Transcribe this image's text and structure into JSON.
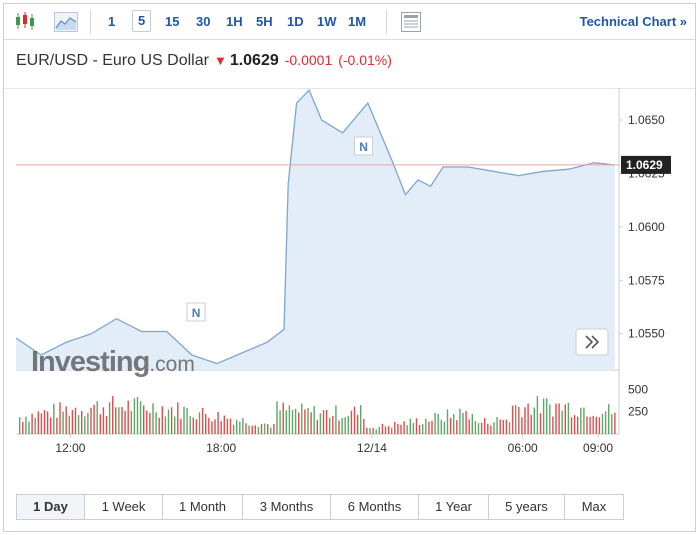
{
  "toolbar": {
    "intervals": [
      {
        "label": "1",
        "active": false
      },
      {
        "label": "5",
        "active": true
      },
      {
        "label": "15",
        "active": false
      },
      {
        "label": "30",
        "active": false
      },
      {
        "label": "1H",
        "active": false
      },
      {
        "label": "5H",
        "active": false
      },
      {
        "label": "1D",
        "active": false
      },
      {
        "label": "1W",
        "active": false
      },
      {
        "label": "1M",
        "active": false
      }
    ],
    "technical_chart_label": "Technical Chart »"
  },
  "quote": {
    "name": "EUR/USD - Euro US Dollar",
    "direction_icon": "down-arrow-icon",
    "price": "1.0629",
    "change": "-0.0001",
    "change_pct": "(-0.01%)"
  },
  "watermark": {
    "brand": "Investing",
    "suffix": ".com"
  },
  "colors": {
    "accent": "#1f57a8",
    "line": "#7da6d0",
    "area": "#e3edf7",
    "down": "#e02b2b",
    "up": "#3e9a4a",
    "price_line": "#f0a3a3",
    "price_tag_bg": "#222222"
  },
  "chart_data": {
    "type": "area",
    "symbol": "EUR/USD",
    "interval": "5",
    "current_price": "1.0629",
    "yticks": [
      "1.0650",
      "1.0625",
      "1.0600",
      "1.0575",
      "1.0550"
    ],
    "ylim": [
      1.0533,
      1.0665
    ],
    "xticks": [
      "12:00",
      "18:00",
      "12/14",
      "06:00",
      "09:00"
    ],
    "x": [
      "09:50",
      "10:50",
      "11:50",
      "12:50",
      "13:50",
      "14:50",
      "15:50",
      "16:50",
      "17:50",
      "18:50",
      "19:50",
      "20:30",
      "20:40",
      "21:00",
      "21:30",
      "22:00",
      "22:50",
      "23:50",
      "00:50",
      "01:20",
      "01:50",
      "02:20",
      "02:50",
      "03:50",
      "04:50",
      "05:50",
      "06:50",
      "07:50",
      "08:50",
      "09:40"
    ],
    "y": [
      1.0548,
      1.054,
      1.0546,
      1.055,
      1.0557,
      1.0551,
      1.0551,
      1.054,
      1.0536,
      1.0541,
      1.0546,
      1.0552,
      1.062,
      1.0658,
      1.0664,
      1.065,
      1.0644,
      1.0658,
      1.063,
      1.0615,
      1.0622,
      1.0619,
      1.0628,
      1.0628,
      1.0626,
      1.0624,
      1.0626,
      1.0627,
      1.063,
      1.0629
    ],
    "events": [
      {
        "x": "17:00",
        "label": "N"
      },
      {
        "x": "23:40",
        "label": "N"
      }
    ],
    "volume_yticks": [
      "500",
      "250"
    ],
    "volume_ylim": [
      0,
      650
    ]
  },
  "ranges": [
    {
      "label": "1 Day",
      "active": true
    },
    {
      "label": "1 Week",
      "active": false
    },
    {
      "label": "1 Month",
      "active": false
    },
    {
      "label": "3 Months",
      "active": false
    },
    {
      "label": "6 Months",
      "active": false
    },
    {
      "label": "1 Year",
      "active": false
    },
    {
      "label": "5 years",
      "active": false
    },
    {
      "label": "Max",
      "active": false
    }
  ]
}
